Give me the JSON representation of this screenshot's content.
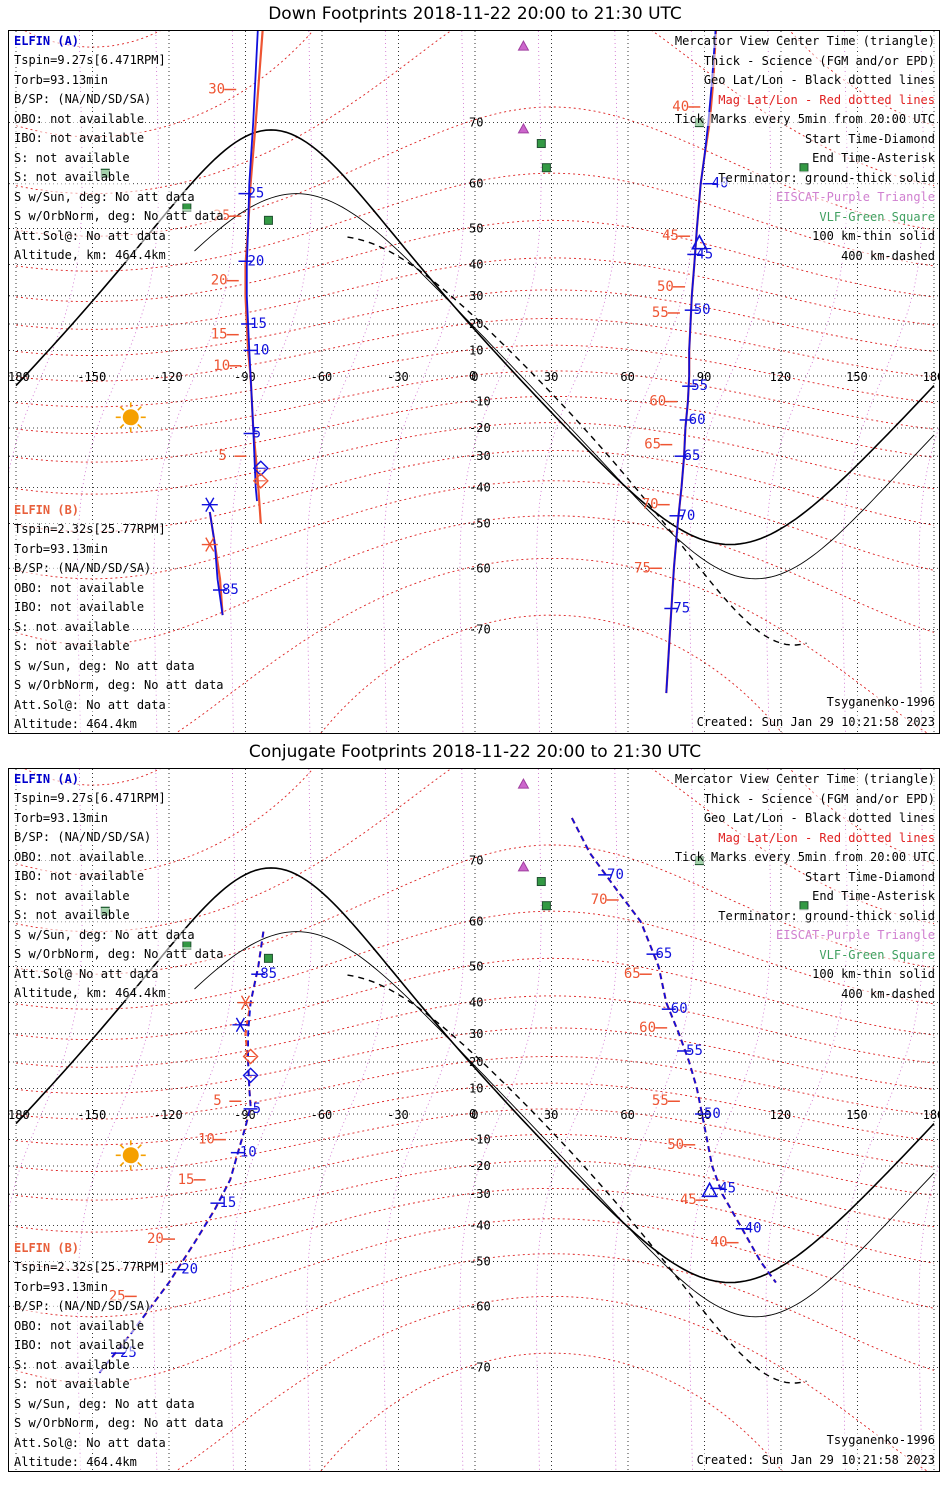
{
  "panels": [
    {
      "title": "Down Footprints 2018-11-22 20:00 to 21:30 UTC",
      "elfin_a": {
        "header": "ELFIN (A)",
        "lines": [
          "Tspin=9.27s[6.471RPM]",
          "Torb=93.13min",
          "B/SP: (NA/ND/SD/SA)",
          "OBO: not available",
          "IBO: not available",
          "S: not available",
          "S: not available",
          "S w/Sun, deg: No att data",
          "S w/OrbNorm, deg: No att data",
          "Att.Sol@: No att data",
          "Altitude, km: 464.4km"
        ]
      },
      "elfin_b": {
        "header": "ELFIN (B)",
        "lines": [
          "Tspin=2.32s[25.77RPM]",
          "Torb=93.13min",
          "B/SP: (NA/ND/SD/SA)",
          "OBO: not available",
          "IBO: not available",
          "S: not available",
          "S: not available",
          "S w/Sun, deg: No att data",
          "S w/OrbNorm, deg: No att data",
          "Att.Sol@: No att data",
          "Altitude: 464.4km"
        ]
      },
      "footer_model": "Tsyganenko-1996",
      "footer_created": "Created: Sun Jan 29 10:21:58 2023"
    },
    {
      "title": "Conjugate Footprints 2018-11-22 20:00 to 21:30 UTC",
      "elfin_a": {
        "header": "ELFIN (A)",
        "lines": [
          "Tspin=9.27s[6.471RPM]",
          "Torb=93.13min",
          "B/SP: (NA/ND/SD/SA)",
          "OBO: not available",
          "IBO: not available",
          "S: not available",
          "S: not available",
          "S w/Sun, deg: No att data",
          "S w/OrbNorm, deg: No att data",
          "Att.Sol@ No att data",
          "Altitude, km: 464.4km"
        ]
      },
      "elfin_b": {
        "header": "ELFIN (B)",
        "lines": [
          "Tspin=2.32s[25.77RPM]",
          "Torb=93.13min",
          "B/SP: (NA/ND/SD/SA)",
          "OBO: not available",
          "IBO: not available",
          "S: not available",
          "S: not available",
          "S w/Sun, deg: No att data",
          "S w/OrbNorm, deg: No att data",
          "Att.Sol@: No att data",
          "Altitude: 464.4km"
        ]
      },
      "footer_model": "Tsyganenko-1996",
      "footer_created": "Created: Sun Jan 29 10:21:58 2023"
    }
  ],
  "legend": {
    "mercator": "Mercator View Center Time (triangle)",
    "thick": "Thick - Science (FGM and/or EPD)",
    "geo": "Geo Lat/Lon - Black dotted lines",
    "mag": "Mag Lat/Lon - Red dotted lines",
    "ticks": "Tick Marks every 5min from 20:00 UTC",
    "start": "Start Time-Diamond",
    "end": "End Time-Asterisk",
    "terminator": "Terminator: ground-thick solid",
    "eiscat": "EISCAT-Purple Triangle",
    "vlf": "VLF-Green Square",
    "km100": "100 km-thin solid",
    "km400": "400 km-dashed"
  },
  "axis": {
    "lon_ticks": [
      "-180",
      "-150",
      "-120",
      "-90",
      "-60",
      "-30",
      "0",
      "30",
      "60",
      "90",
      "120",
      "150",
      "180"
    ],
    "lat_ticks": [
      "70",
      "60",
      "50",
      "40",
      "30",
      "20",
      "10",
      "0",
      "-10",
      "-20",
      "-30",
      "-40",
      "-50",
      "-60",
      "-70"
    ]
  },
  "colors": {
    "elfin_a": "#1010dd",
    "elfin_b": "#ee5533",
    "mag_grid": "#dd2020",
    "geo_grid": "#000000",
    "eiscat": "#cc66cc",
    "vlf": "#339944",
    "sun": "#f5a000"
  },
  "tracks": {
    "down": {
      "b_track": [
        [
          -83,
          80
        ],
        [
          -86,
          70
        ],
        [
          -88,
          60
        ],
        [
          -89,
          50
        ],
        [
          -90,
          40
        ],
        [
          -90,
          30
        ],
        [
          -89.5,
          20
        ],
        [
          -89,
          10
        ],
        [
          -88,
          0
        ],
        [
          -87.5,
          -10
        ],
        [
          -87,
          -20
        ],
        [
          -86,
          -30
        ],
        [
          -85,
          -40
        ],
        [
          -84,
          -50
        ]
      ],
      "a_track": [
        [
          -85,
          80
        ],
        [
          -87,
          70
        ],
        [
          -88.5,
          60
        ],
        [
          -89,
          50
        ],
        [
          -89.5,
          40
        ],
        [
          -89.5,
          30
        ],
        [
          -89,
          20
        ],
        [
          -88.5,
          10
        ],
        [
          -88,
          0
        ],
        [
          -87.5,
          -10
        ],
        [
          -87,
          -20
        ],
        [
          -86.5,
          -30
        ],
        [
          -86,
          -40
        ],
        [
          -85.5,
          -44
        ]
      ],
      "b_track2": [
        [
          -104,
          -47
        ],
        [
          -102,
          -55
        ],
        [
          -100,
          -62
        ],
        [
          -99,
          -68
        ]
      ],
      "a_track2": [
        [
          -104,
          -47
        ],
        [
          -102,
          -55
        ],
        [
          -101,
          -62
        ],
        [
          -99,
          -68
        ]
      ],
      "a_east": [
        [
          95,
          81
        ],
        [
          93,
          75
        ],
        [
          91.5,
          70
        ],
        [
          90,
          65
        ],
        [
          88.5,
          60
        ],
        [
          87,
          50
        ],
        [
          86,
          40
        ],
        [
          85,
          30
        ],
        [
          84.5,
          20
        ],
        [
          84,
          10
        ],
        [
          84,
          0
        ],
        [
          83.5,
          -10
        ],
        [
          82.5,
          -20
        ],
        [
          82,
          -30
        ],
        [
          81,
          -40
        ],
        [
          79.5,
          -50
        ],
        [
          78,
          -60
        ],
        [
          76.5,
          -70
        ],
        [
          75,
          -77
        ]
      ],
      "b_east": [
        [
          95,
          81
        ],
        [
          93.5,
          75
        ],
        [
          92,
          70
        ],
        [
          90,
          65
        ],
        [
          88.5,
          60
        ],
        [
          87,
          50
        ],
        [
          86,
          40
        ],
        [
          85,
          30
        ],
        [
          84.5,
          20
        ],
        [
          84,
          10
        ],
        [
          84,
          0
        ],
        [
          83.5,
          -10
        ],
        [
          82.5,
          -20
        ],
        [
          82,
          -30
        ],
        [
          81,
          -40
        ],
        [
          79.5,
          -50
        ],
        [
          78,
          -60
        ],
        [
          76.5,
          -70
        ],
        [
          75,
          -77
        ]
      ],
      "a_ticks": [
        {
          "lon": -90,
          "lat": 58,
          "label": "25"
        },
        {
          "lon": -90,
          "lat": 41,
          "label": "20"
        },
        {
          "lon": -89,
          "lat": 20,
          "label": "15"
        },
        {
          "lon": -88,
          "lat": 10,
          "label": "10"
        },
        {
          "lon": -88,
          "lat": -22,
          "label": "5"
        },
        {
          "lon": -100,
          "lat": -64,
          "label": "85"
        },
        {
          "lon": 92,
          "lat": 60,
          "label": "40"
        },
        {
          "lon": 86,
          "lat": 43,
          "label": "45"
        },
        {
          "lon": 85,
          "lat": 25,
          "label": "50"
        },
        {
          "lon": 84,
          "lat": -4,
          "label": "55"
        },
        {
          "lon": 83,
          "lat": -17,
          "label": "60"
        },
        {
          "lon": 81,
          "lat": -30,
          "label": "65"
        },
        {
          "lon": 79,
          "lat": -48,
          "label": "70"
        },
        {
          "lon": 77,
          "lat": -67,
          "label": "75"
        }
      ],
      "b_ticks": [
        {
          "lon": -96,
          "lat": 74,
          "label": "30"
        },
        {
          "lon": -94,
          "lat": 53,
          "label": "25"
        },
        {
          "lon": -95,
          "lat": 35,
          "label": "20"
        },
        {
          "lon": -95,
          "lat": 16,
          "label": "15"
        },
        {
          "lon": -94,
          "lat": 4,
          "label": "10"
        },
        {
          "lon": -92,
          "lat": -30,
          "label": "5"
        },
        {
          "lon": 86,
          "lat": 72,
          "label": "40"
        },
        {
          "lon": 82,
          "lat": 48,
          "label": "45"
        },
        {
          "lon": 80,
          "lat": 33,
          "label": "50"
        },
        {
          "lon": 78,
          "lat": 24,
          "label": "55"
        },
        {
          "lon": 77,
          "lat": -10,
          "label": "60"
        },
        {
          "lon": 75,
          "lat": -26,
          "label": "65"
        },
        {
          "lon": 74,
          "lat": -45,
          "label": "70"
        },
        {
          "lon": 71,
          "lat": -60,
          "label": "75"
        }
      ],
      "a_start": [
        -84,
        -34
      ],
      "b_start": [
        -84,
        -38
      ],
      "a_end": [
        -104,
        -45
      ],
      "b_end": [
        -104,
        -55
      ]
    },
    "conj": {
      "a_west": [
        [
          -83,
          58
        ],
        [
          -85,
          50
        ],
        [
          -88,
          40
        ],
        [
          -89,
          30
        ],
        [
          -89,
          20
        ],
        [
          -88.5,
          10
        ],
        [
          -88,
          3
        ],
        [
          -90,
          -5
        ],
        [
          -93,
          -15
        ],
        [
          -96,
          -25
        ],
        [
          -102,
          -35
        ],
        [
          -110,
          -45
        ],
        [
          -120,
          -55
        ],
        [
          -135,
          -65
        ],
        [
          -148,
          -71
        ]
      ],
      "b_west": [
        [
          -83,
          58
        ],
        [
          -85,
          50
        ],
        [
          -88,
          40
        ],
        [
          -90,
          30
        ],
        [
          -89,
          20
        ],
        [
          -88.5,
          10
        ],
        [
          -88,
          3
        ],
        [
          -90,
          -5
        ],
        [
          -93,
          -15
        ],
        [
          -96,
          -25
        ],
        [
          -102,
          -35
        ],
        [
          -110,
          -45
        ],
        [
          -120,
          -55
        ],
        [
          -135,
          -65
        ],
        [
          -148,
          -71
        ]
      ],
      "a_east": [
        [
          38,
          75
        ],
        [
          45,
          71
        ],
        [
          55,
          66
        ],
        [
          65,
          60
        ],
        [
          72,
          50
        ],
        [
          75,
          40
        ],
        [
          80,
          30
        ],
        [
          84,
          20
        ],
        [
          87,
          10
        ],
        [
          89,
          0
        ],
        [
          91,
          -10
        ],
        [
          93,
          -20
        ],
        [
          97,
          -30
        ],
        [
          104,
          -40
        ],
        [
          112,
          -50
        ],
        [
          118,
          -55
        ]
      ],
      "b_east": [
        [
          38,
          75
        ],
        [
          45,
          71
        ],
        [
          55,
          66
        ],
        [
          65,
          60
        ],
        [
          72,
          50
        ],
        [
          75,
          40
        ],
        [
          80,
          30
        ],
        [
          84,
          20
        ],
        [
          87,
          10
        ],
        [
          89,
          0
        ],
        [
          91,
          -10
        ],
        [
          93,
          -20
        ],
        [
          97,
          -30
        ],
        [
          104,
          -40
        ],
        [
          112,
          -50
        ],
        [
          118,
          -55
        ]
      ],
      "a_ticks": [
        {
          "lon": -85,
          "lat": 48,
          "label": "85"
        },
        {
          "lon": -88,
          "lat": 2,
          "label": "5"
        },
        {
          "lon": -93,
          "lat": -15,
          "label": "10"
        },
        {
          "lon": -101,
          "lat": -33,
          "label": "15"
        },
        {
          "lon": -116,
          "lat": -52,
          "label": "20"
        },
        {
          "lon": -140,
          "lat": -68,
          "label": "25"
        },
        {
          "lon": 51,
          "lat": 68,
          "label": "70"
        },
        {
          "lon": 70,
          "lat": 53,
          "label": "65"
        },
        {
          "lon": 76,
          "lat": 38,
          "label": "60"
        },
        {
          "lon": 82,
          "lat": 24,
          "label": "55"
        },
        {
          "lon": 89,
          "lat": 0,
          "label": "50"
        },
        {
          "lon": 95,
          "lat": -28,
          "label": "45"
        },
        {
          "lon": 105,
          "lat": -41,
          "label": "40"
        }
      ],
      "b_ticks": [
        {
          "lon": -94,
          "lat": 5,
          "label": "5"
        },
        {
          "lon": -100,
          "lat": -10,
          "label": "10"
        },
        {
          "lon": -108,
          "lat": -25,
          "label": "15"
        },
        {
          "lon": -120,
          "lat": -44,
          "label": "20"
        },
        {
          "lon": -135,
          "lat": -58,
          "label": "25"
        },
        {
          "lon": 54,
          "lat": 64,
          "label": "70"
        },
        {
          "lon": 67,
          "lat": 48,
          "label": "65"
        },
        {
          "lon": 73,
          "lat": 32,
          "label": "60"
        },
        {
          "lon": 78,
          "lat": 5,
          "label": "55"
        },
        {
          "lon": 84,
          "lat": -12,
          "label": "50"
        },
        {
          "lon": 89,
          "lat": -32,
          "label": "45"
        },
        {
          "lon": 101,
          "lat": -45,
          "label": "40"
        }
      ],
      "a_start": [
        -88,
        15
      ],
      "b_start": [
        -88,
        22
      ],
      "a_end": [
        -92,
        33
      ],
      "b_end": [
        -90,
        40
      ]
    }
  },
  "markers": {
    "eiscat": [
      [
        19,
        78
      ],
      [
        19,
        69
      ]
    ],
    "vlf": [
      [
        26,
        67
      ],
      [
        28,
        63
      ],
      [
        88,
        70
      ],
      [
        -145,
        62
      ],
      [
        -113,
        55
      ],
      [
        -81,
        52
      ],
      [
        129,
        63
      ]
    ],
    "center_triangle": [
      [
        88,
        46
      ],
      [
        92,
        -29
      ]
    ],
    "sun": [
      -135,
      -16
    ]
  }
}
